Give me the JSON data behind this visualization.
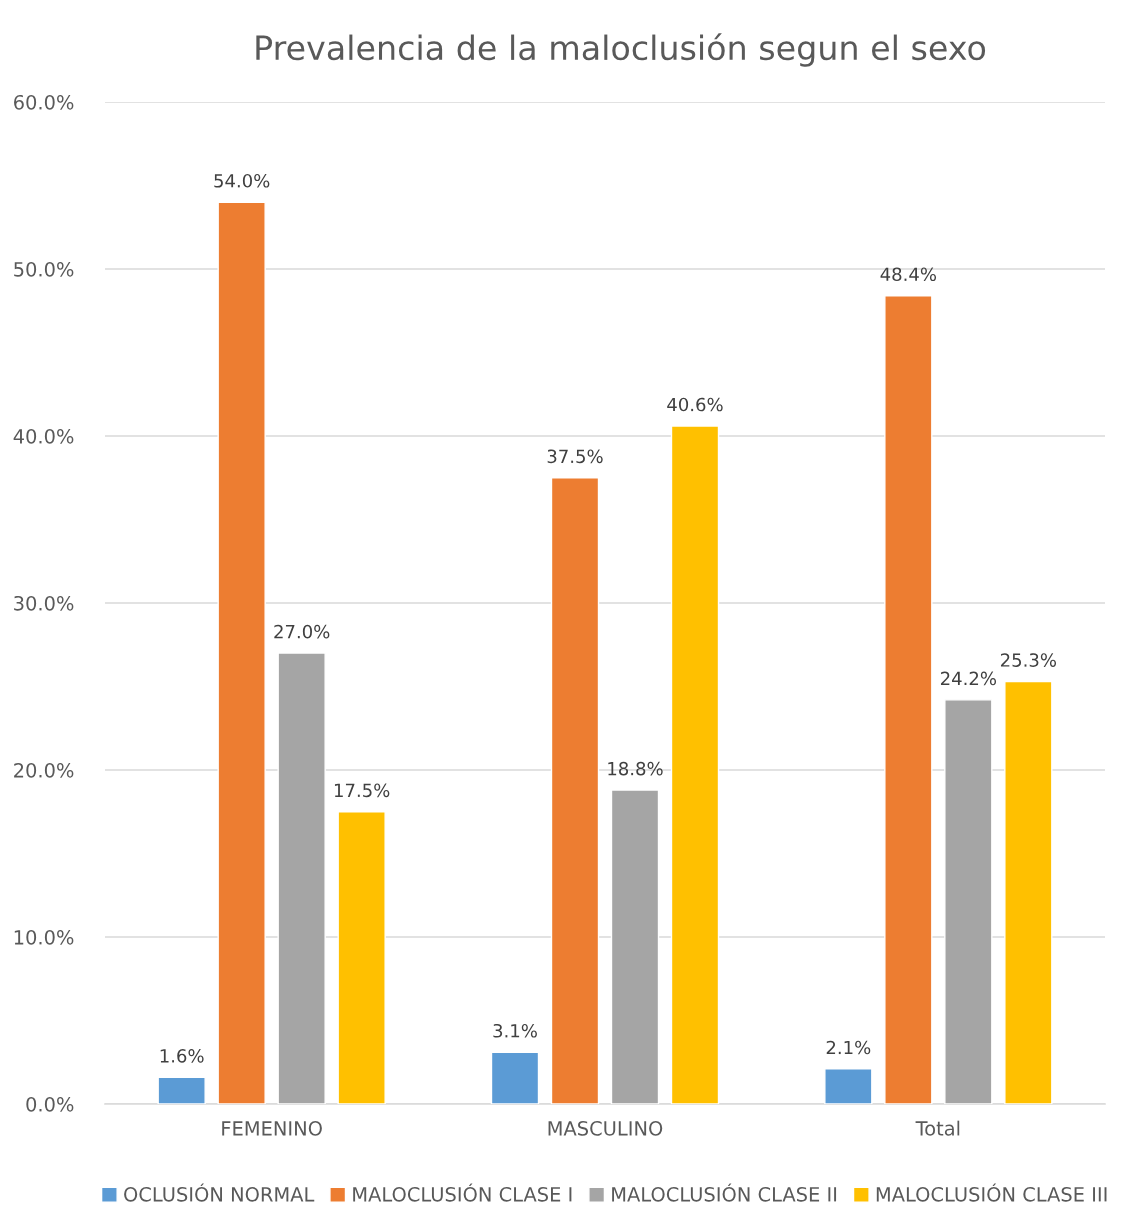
{
  "chart_data": {
    "type": "bar",
    "title": "Prevalencia de la maloclusión segun el sexo",
    "categories": [
      "FEMENINO",
      "MASCULINO",
      "Total"
    ],
    "series": [
      {
        "name": "OCLUSIÓN NORMAL",
        "color": "#5b9bd5",
        "values": [
          1.6,
          3.1,
          2.1
        ],
        "value_labels": [
          "1.6%",
          "3.1%",
          "2.1%"
        ]
      },
      {
        "name": "MALOCLUSIÓN CLASE I",
        "color": "#ed7d31",
        "values": [
          54.0,
          37.5,
          48.4
        ],
        "value_labels": [
          "54.0%",
          "37.5%",
          "48.4%"
        ]
      },
      {
        "name": "MALOCLUSIÓN CLASE II",
        "color": "#a5a5a5",
        "values": [
          27.0,
          18.8,
          24.2
        ],
        "value_labels": [
          "27.0%",
          "18.8%",
          "24.2%"
        ]
      },
      {
        "name": "MALOCLUSIÓN CLASE III",
        "color": "#ffc000",
        "values": [
          17.5,
          40.6,
          25.3
        ],
        "value_labels": [
          "17.5%",
          "40.6%",
          "25.3%"
        ]
      }
    ],
    "ylim": [
      0,
      60
    ],
    "yticks": [
      {
        "value": 0,
        "label": "0.0%"
      },
      {
        "value": 10,
        "label": "10.0%"
      },
      {
        "value": 20,
        "label": "20.0%"
      },
      {
        "value": 30,
        "label": "30.0%"
      },
      {
        "value": 40,
        "label": "40.0%"
      },
      {
        "value": 50,
        "label": "50.0%"
      },
      {
        "value": 60,
        "label": "60.0%"
      }
    ],
    "grid": "y",
    "legend": "bottom"
  }
}
